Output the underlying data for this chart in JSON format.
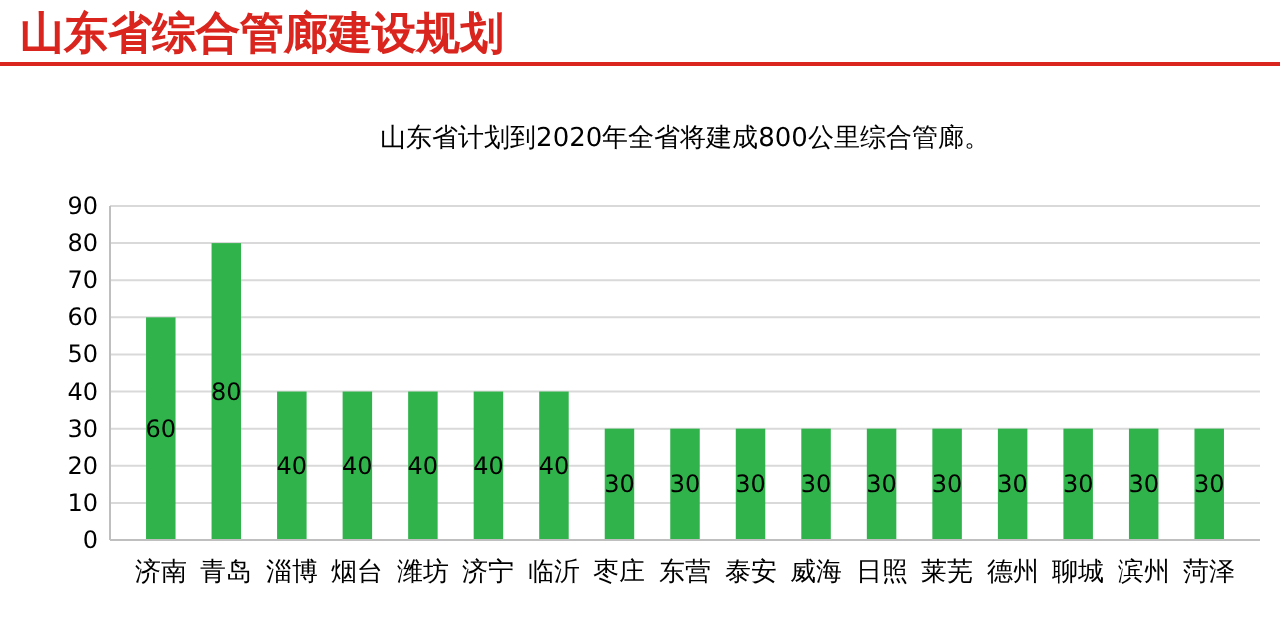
{
  "chart_data": {
    "type": "bar",
    "title": "山东省综合管廊建设规划",
    "subtitle": "山东省计划到2020年全省将建成800公里综合管廊。",
    "categories": [
      "济南",
      "青岛",
      "淄博",
      "烟台",
      "潍坊",
      "济宁",
      "临沂",
      "枣庄",
      "东营",
      "泰安",
      "威海",
      "日照",
      "莱芜",
      "德州",
      "聊城",
      "滨州",
      "菏泽"
    ],
    "values": [
      60,
      80,
      40,
      40,
      40,
      40,
      40,
      30,
      30,
      30,
      30,
      30,
      30,
      30,
      30,
      30,
      30
    ],
    "color": "#2fb34a",
    "ylim": [
      0,
      90
    ],
    "yticks": [
      0,
      10,
      20,
      30,
      40,
      50,
      60,
      70,
      80,
      90
    ],
    "grid": "y",
    "data_labels": true
  }
}
